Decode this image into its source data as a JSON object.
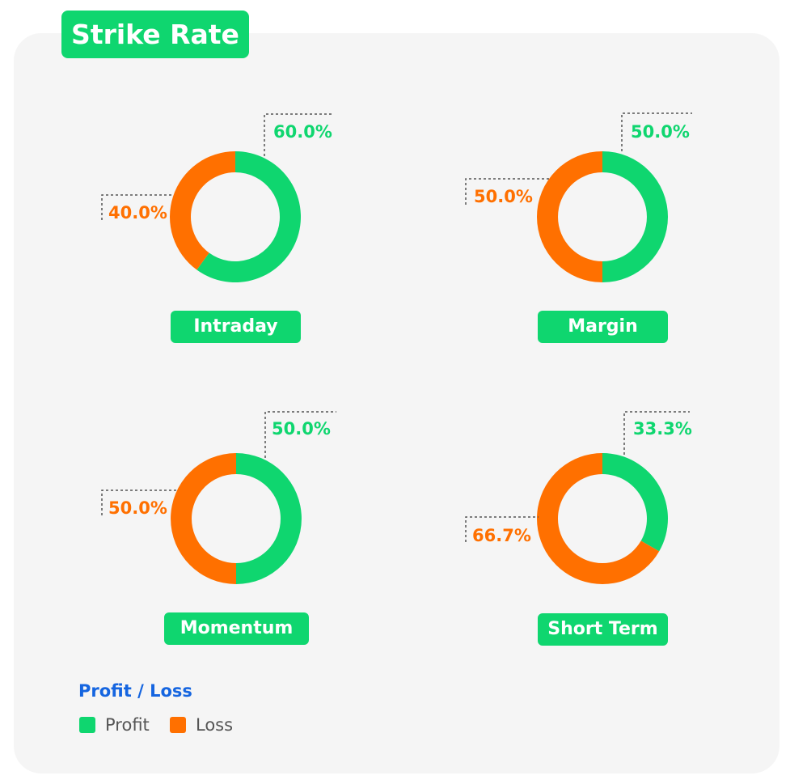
{
  "header": {
    "title": "Strike Rate"
  },
  "colors": {
    "profit": "#0fd66f",
    "loss": "#ff7000",
    "legend_title": "#1565e0"
  },
  "legend": {
    "title": "Profit / Loss",
    "items": [
      {
        "label": "Profit",
        "color": "#0fd66f"
      },
      {
        "label": "Loss",
        "color": "#ff7000"
      }
    ]
  },
  "chart_data": [
    {
      "type": "pie",
      "title": "Intraday",
      "series": [
        {
          "name": "Profit",
          "value": 60.0,
          "label": "60.0%"
        },
        {
          "name": "Loss",
          "value": 40.0,
          "label": "40.0%"
        }
      ]
    },
    {
      "type": "pie",
      "title": "Margin",
      "series": [
        {
          "name": "Profit",
          "value": 50.0,
          "label": "50.0%"
        },
        {
          "name": "Loss",
          "value": 50.0,
          "label": "50.0%"
        }
      ]
    },
    {
      "type": "pie",
      "title": "Momentum",
      "series": [
        {
          "name": "Profit",
          "value": 50.0,
          "label": "50.0%"
        },
        {
          "name": "Loss",
          "value": 50.0,
          "label": "50.0%"
        }
      ]
    },
    {
      "type": "pie",
      "title": "Short Term",
      "series": [
        {
          "name": "Profit",
          "value": 33.3,
          "label": "33.3%"
        },
        {
          "name": "Loss",
          "value": 66.7,
          "label": "66.7%"
        }
      ]
    }
  ]
}
